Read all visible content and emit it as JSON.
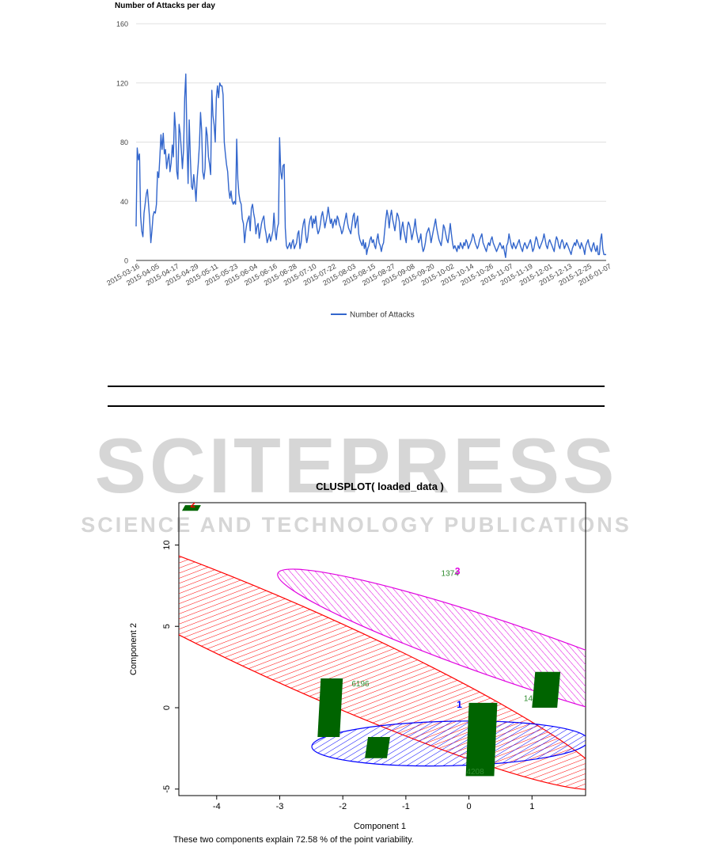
{
  "watermark": {
    "brand": "SCITEPRESS",
    "tagline": "SCIENCE AND TECHNOLOGY PUBLICATIONS"
  },
  "colors": {
    "line": "#3366cc",
    "grid": "#e0e0e0",
    "tick_label": "#444444",
    "cluster_red": "#ff0000",
    "cluster_blue": "#0000ff",
    "cluster_magenta": "#e000e0",
    "points_green": "#006400",
    "watermark": "#d6d6d6"
  },
  "chart_data": [
    {
      "type": "line",
      "title": "Number of Attacks per day",
      "ylim": [
        0,
        160
      ],
      "yticks": [
        0,
        40,
        80,
        120,
        160
      ],
      "grid": true,
      "legend_position": "bottom",
      "x_tick_labels": [
        "2015-03-16",
        "2015-04-05",
        "2015-04-17",
        "2015-04-29",
        "2015-05-11",
        "2015-05-23",
        "2015-06-04",
        "2015-06-16",
        "2015-06-28",
        "2015-07-10",
        "2015-07-22",
        "2015-08-03",
        "2015-08-15",
        "2015-08-27",
        "2015-09-08",
        "2015-09-20",
        "2015-10-02",
        "2015-10-14",
        "2015-10-26",
        "2015-11-07",
        "2015-11-19",
        "2015-12-01",
        "2015-12-13",
        "2015-12-25",
        "2016-01-07"
      ],
      "series": [
        {
          "name": "Number of Attacks",
          "values": [
            23,
            76,
            68,
            72,
            30,
            20,
            16,
            32,
            38,
            45,
            48,
            38,
            28,
            12,
            20,
            30,
            33,
            32,
            38,
            60,
            56,
            70,
            85,
            75,
            86,
            72,
            75,
            62,
            68,
            72,
            60,
            66,
            78,
            70,
            100,
            88,
            60,
            55,
            92,
            86,
            75,
            62,
            75,
            110,
            126,
            80,
            52,
            95,
            70,
            50,
            48,
            58,
            50,
            40,
            55,
            65,
            78,
            100,
            88,
            60,
            55,
            62,
            90,
            84,
            70,
            65,
            58,
            115,
            98,
            92,
            80,
            110,
            118,
            110,
            120,
            118,
            118,
            112,
            80,
            72,
            65,
            60,
            48,
            42,
            47,
            40,
            38,
            40,
            38,
            82,
            55,
            45,
            40,
            38,
            28,
            25,
            12,
            20,
            25,
            28,
            30,
            20,
            35,
            38,
            32,
            28,
            18,
            23,
            25,
            15,
            20,
            25,
            28,
            30,
            22,
            18,
            12,
            15,
            18,
            13,
            16,
            20,
            32,
            20,
            14,
            22,
            25,
            83,
            60,
            55,
            64,
            65,
            22,
            10,
            8,
            10,
            12,
            8,
            12,
            14,
            8,
            10,
            12,
            18,
            20,
            8,
            12,
            20,
            25,
            28,
            18,
            12,
            16,
            24,
            28,
            30,
            22,
            28,
            25,
            30,
            22,
            18,
            20,
            24,
            30,
            33,
            28,
            22,
            26,
            30,
            36,
            30,
            25,
            28,
            22,
            26,
            28,
            24,
            30,
            28,
            24,
            22,
            18,
            20,
            24,
            28,
            32,
            26,
            22,
            20,
            18,
            24,
            30,
            32,
            22,
            26,
            30,
            18,
            14,
            12,
            10,
            14,
            8,
            12,
            4,
            8,
            10,
            14,
            16,
            12,
            14,
            10,
            8,
            14,
            18,
            12,
            10,
            6,
            10,
            12,
            20,
            28,
            34,
            30,
            22,
            30,
            34,
            28,
            24,
            20,
            26,
            32,
            30,
            26,
            14,
            22,
            26,
            20,
            16,
            12,
            22,
            26,
            24,
            20,
            14,
            18,
            22,
            28,
            20,
            16,
            12,
            14,
            18,
            10,
            6,
            8,
            12,
            18,
            20,
            22,
            18,
            12,
            16,
            20,
            24,
            28,
            22,
            18,
            14,
            12,
            10,
            16,
            24,
            22,
            18,
            14,
            12,
            18,
            25,
            18,
            12,
            8,
            10,
            8,
            6,
            10,
            8,
            12,
            10,
            8,
            12,
            10,
            14,
            12,
            8,
            10,
            12,
            14,
            18,
            16,
            12,
            10,
            8,
            10,
            14,
            16,
            18,
            12,
            10,
            8,
            6,
            10,
            12,
            10,
            14,
            16,
            12,
            10,
            8,
            6,
            8,
            10,
            12,
            10,
            8,
            10,
            6,
            2,
            10,
            12,
            18,
            14,
            10,
            8,
            12,
            10,
            8,
            10,
            12,
            14,
            10,
            8,
            6,
            10,
            12,
            10,
            8,
            10,
            12,
            14,
            10,
            6,
            8,
            12,
            16,
            14,
            10,
            8,
            10,
            12,
            14,
            18,
            14,
            10,
            8,
            12,
            14,
            12,
            10,
            8,
            6,
            12,
            16,
            14,
            10,
            8,
            12,
            14,
            12,
            8,
            10,
            12,
            10,
            8,
            6,
            4,
            8,
            10,
            12,
            10,
            14,
            12,
            10,
            8,
            12,
            10,
            8,
            4,
            10,
            12,
            14,
            10,
            8,
            6,
            10,
            12,
            8,
            6,
            10,
            4,
            4,
            14,
            18,
            8,
            4,
            4,
            4
          ]
        }
      ]
    },
    {
      "type": "scatter",
      "title": "CLUSPLOT( loaded_data )",
      "xlabel": "Component 1",
      "ylabel": "Component 2",
      "xlim": [
        -4.6,
        1.85
      ],
      "ylim": [
        -5.4,
        12.6
      ],
      "xticks": [
        -4,
        -3,
        -2,
        -1,
        0,
        1
      ],
      "yticks": [
        -5,
        0,
        5,
        10
      ],
      "caption": "These two components explain 72.58 % of the point variability.",
      "clusters": [
        {
          "id": "2",
          "color": "red",
          "center": [
            -2.6,
            3.5
          ],
          "semi_major": 9.5,
          "semi_minor": 0.72,
          "angle_deg": -60,
          "hatch_angle": 45,
          "label_points": [
            {
              "x": -4.38,
              "y": 12.5,
              "text": "2"
            }
          ]
        },
        {
          "id": "1",
          "color": "blue",
          "center": [
            -0.3,
            -2.2
          ],
          "semi_major": 2.2,
          "semi_minor": 1.3,
          "angle_deg": 5,
          "hatch_angle": 60,
          "label_points": [
            {
              "x": -0.15,
              "y": 0.2,
              "text": "1"
            }
          ]
        },
        {
          "id": "3",
          "color": "magenta",
          "center": [
            0.7,
            3.3
          ],
          "semi_major": 6.2,
          "semi_minor": 0.55,
          "angle_deg": -53,
          "hatch_angle": 120,
          "label_points": [
            {
              "x": -0.18,
              "y": 8.4,
              "text": "3"
            }
          ]
        }
      ],
      "point_labels": [
        {
          "x": -1.72,
          "y": 1.5,
          "text": "6196"
        },
        {
          "x": -0.3,
          "y": 8.3,
          "text": "1374"
        },
        {
          "x": 0.94,
          "y": 0.6,
          "text": "14"
        },
        {
          "x": 0.1,
          "y": -3.9,
          "text": "4208"
        }
      ],
      "point_masses": [
        {
          "x_range": [
            -2.4,
            -2.0
          ],
          "y_range": [
            -1.8,
            1.8
          ]
        },
        {
          "x_range": [
            -1.65,
            -1.25
          ],
          "y_range": [
            -3.1,
            -1.8
          ]
        },
        {
          "x_range": [
            -0.05,
            0.45
          ],
          "y_range": [
            -4.2,
            0.3
          ]
        },
        {
          "x_range": [
            1.0,
            1.45
          ],
          "y_range": [
            0.0,
            2.2
          ]
        },
        {
          "x_range": [
            -4.55,
            -4.25
          ],
          "y_range": [
            12.1,
            12.45
          ]
        }
      ]
    }
  ]
}
